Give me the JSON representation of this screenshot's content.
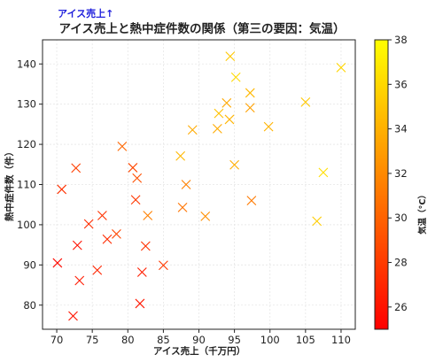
{
  "chart_data": {
    "type": "scatter",
    "title": "アイス売上と熱中症件数の関係（第三の要因：気温）",
    "annotation": "アイス売上↑",
    "xlabel": "アイス売上（千万円）",
    "ylabel": "熱中症件数（件）",
    "xlim": [
      68,
      112
    ],
    "ylim": [
      74,
      146
    ],
    "xticks": [
      70,
      75,
      80,
      85,
      90,
      95,
      100,
      105,
      110
    ],
    "yticks": [
      80,
      90,
      100,
      110,
      120,
      130,
      140
    ],
    "grid": true,
    "marker": "x",
    "colorbar": {
      "label": "気温（°C）",
      "range": [
        25,
        38
      ],
      "ticks": [
        26,
        28,
        30,
        32,
        34,
        36,
        38
      ],
      "colormap": "autumn",
      "color_low": "#ff0000",
      "color_high": "#ffff00"
    },
    "points": [
      {
        "x": 70.1,
        "y": 90.5,
        "c": 25.5
      },
      {
        "x": 70.7,
        "y": 108.8,
        "c": 27.5
      },
      {
        "x": 72.3,
        "y": 77.3,
        "c": 26.0
      },
      {
        "x": 72.7,
        "y": 114.1,
        "c": 28.2
      },
      {
        "x": 72.9,
        "y": 94.9,
        "c": 25.8
      },
      {
        "x": 73.2,
        "y": 86.1,
        "c": 26.3
      },
      {
        "x": 74.5,
        "y": 100.2,
        "c": 27.3
      },
      {
        "x": 75.7,
        "y": 88.7,
        "c": 26.9
      },
      {
        "x": 76.4,
        "y": 102.3,
        "c": 27.6
      },
      {
        "x": 77.1,
        "y": 96.4,
        "c": 27.2
      },
      {
        "x": 78.4,
        "y": 97.7,
        "c": 28.6
      },
      {
        "x": 79.2,
        "y": 119.5,
        "c": 30.2
      },
      {
        "x": 80.7,
        "y": 114.2,
        "c": 28.6
      },
      {
        "x": 81.1,
        "y": 106.2,
        "c": 27.8
      },
      {
        "x": 81.3,
        "y": 111.6,
        "c": 29.1
      },
      {
        "x": 81.7,
        "y": 80.4,
        "c": 26.2
      },
      {
        "x": 82.0,
        "y": 88.2,
        "c": 26.6
      },
      {
        "x": 82.5,
        "y": 94.7,
        "c": 27.5
      },
      {
        "x": 82.8,
        "y": 102.3,
        "c": 31.5
      },
      {
        "x": 85.0,
        "y": 89.9,
        "c": 27.9
      },
      {
        "x": 87.4,
        "y": 117.1,
        "c": 34.4
      },
      {
        "x": 87.7,
        "y": 104.3,
        "c": 30.9
      },
      {
        "x": 88.2,
        "y": 110.0,
        "c": 31.5
      },
      {
        "x": 89.1,
        "y": 123.6,
        "c": 33.7
      },
      {
        "x": 90.9,
        "y": 102.1,
        "c": 32.3
      },
      {
        "x": 92.6,
        "y": 123.9,
        "c": 33.7
      },
      {
        "x": 92.8,
        "y": 127.7,
        "c": 34.9
      },
      {
        "x": 93.9,
        "y": 130.3,
        "c": 33.6
      },
      {
        "x": 94.3,
        "y": 126.2,
        "c": 34.2
      },
      {
        "x": 94.4,
        "y": 141.9,
        "c": 35.2
      },
      {
        "x": 95.0,
        "y": 114.9,
        "c": 33.8
      },
      {
        "x": 95.2,
        "y": 136.7,
        "c": 36.1
      },
      {
        "x": 97.2,
        "y": 132.8,
        "c": 34.4
      },
      {
        "x": 97.2,
        "y": 129.1,
        "c": 33.2
      },
      {
        "x": 97.4,
        "y": 106.0,
        "c": 31.2
      },
      {
        "x": 99.8,
        "y": 124.4,
        "c": 34.1
      },
      {
        "x": 105.0,
        "y": 130.5,
        "c": 35.2
      },
      {
        "x": 106.6,
        "y": 100.9,
        "c": 35.4
      },
      {
        "x": 107.5,
        "y": 113.0,
        "c": 36.3
      },
      {
        "x": 110.0,
        "y": 139.1,
        "c": 35.9
      }
    ]
  },
  "colors": {
    "annotation": "#1f1fdc",
    "axes": "#222222",
    "grid": "#e6e6e6"
  }
}
